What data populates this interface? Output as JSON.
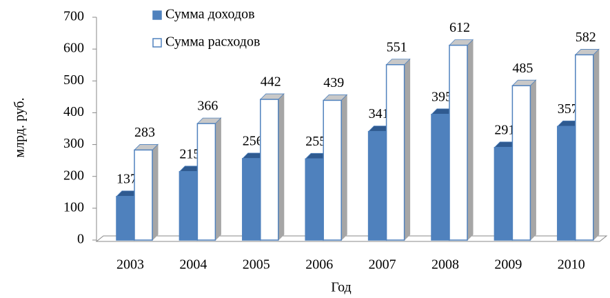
{
  "chart_data": {
    "type": "bar3d",
    "x_label": "Год",
    "y_label": "млрд. руб.",
    "categories": [
      "2003",
      "2004",
      "2005",
      "2006",
      "2007",
      "2008",
      "2009",
      "2010"
    ],
    "series": [
      {
        "name": "Сумма доходов",
        "color": "#4f81bd",
        "values": [
          137,
          215,
          256,
          255,
          341,
          395,
          291,
          357
        ]
      },
      {
        "name": "Сумма расходов",
        "color": "#ffffff",
        "values": [
          283,
          366,
          442,
          439,
          551,
          612,
          485,
          582
        ]
      }
    ],
    "ylim": [
      0,
      700
    ],
    "yticks": [
      0,
      100,
      200,
      300,
      400,
      500,
      600,
      700
    ],
    "legend": "upper left"
  }
}
